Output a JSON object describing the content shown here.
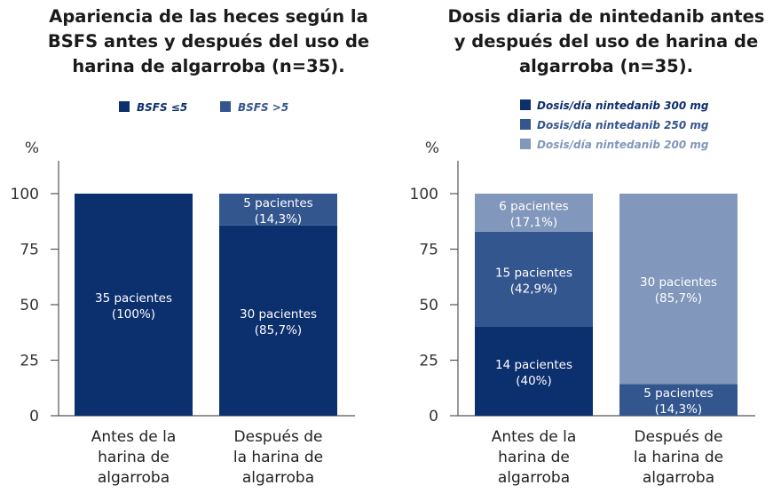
{
  "colors": {
    "dark_navy": "#0c2f6e",
    "medium_blue": "#34568f",
    "light_blue": "#8197bc",
    "axis": "#555555"
  },
  "chart_data": [
    {
      "type": "bar",
      "stacked": true,
      "title": [
        "Apariencia de las heces según la",
        "BSFS antes y después del uso de",
        "harina de algarroba (n=35)."
      ],
      "ylabel": "%",
      "ylim": [
        0,
        100
      ],
      "yticks": [
        0,
        25,
        50,
        75,
        100
      ],
      "categories": [
        [
          "Antes de la",
          "harina de",
          "algarroba"
        ],
        [
          "Después de",
          "la harina de",
          "algarroba"
        ]
      ],
      "legend_position": "top",
      "series": [
        {
          "name": "BSFS ≤5",
          "color": "#0c2f6e",
          "values": [
            100,
            85.7
          ],
          "labels": [
            [
              "35 pacientes",
              "(100%)"
            ],
            [
              "30 pacientes",
              "(85,7%)"
            ]
          ]
        },
        {
          "name": "BSFS >5",
          "color": "#34568f",
          "values": [
            0,
            14.3
          ],
          "labels": [
            [
              "",
              ""
            ],
            [
              "5 pacientes",
              "(14,3%)"
            ]
          ]
        }
      ]
    },
    {
      "type": "bar",
      "stacked": true,
      "title": [
        "Dosis diaria de nintedanib antes",
        "y después del uso de harina de",
        "algarroba (n=35)."
      ],
      "ylabel": "%",
      "ylim": [
        0,
        100
      ],
      "yticks": [
        0,
        25,
        50,
        75,
        100
      ],
      "categories": [
        [
          "Antes de la",
          "harina de",
          "algarroba"
        ],
        [
          "Después de",
          "la harina de",
          "algarroba"
        ]
      ],
      "legend_position": "top",
      "series": [
        {
          "name": "Dosis/día nintedanib 300 mg",
          "color": "#0c2f6e",
          "values": [
            40,
            0
          ],
          "labels": [
            [
              "14 pacientes",
              "(40%)"
            ],
            [
              "",
              ""
            ]
          ]
        },
        {
          "name": "Dosis/día nintedanib 250 mg",
          "color": "#34568f",
          "values": [
            42.9,
            14.3
          ],
          "labels": [
            [
              "15 pacientes",
              "(42,9%)"
            ],
            [
              "5 pacientes",
              "(14,3%)"
            ]
          ]
        },
        {
          "name": "Dosis/día nintedanib 200 mg",
          "color": "#8197bc",
          "values": [
            17.1,
            85.7
          ],
          "labels": [
            [
              "6 pacientes",
              "(17,1%)"
            ],
            [
              "30 pacientes",
              "(85,7%)"
            ]
          ]
        }
      ]
    }
  ]
}
